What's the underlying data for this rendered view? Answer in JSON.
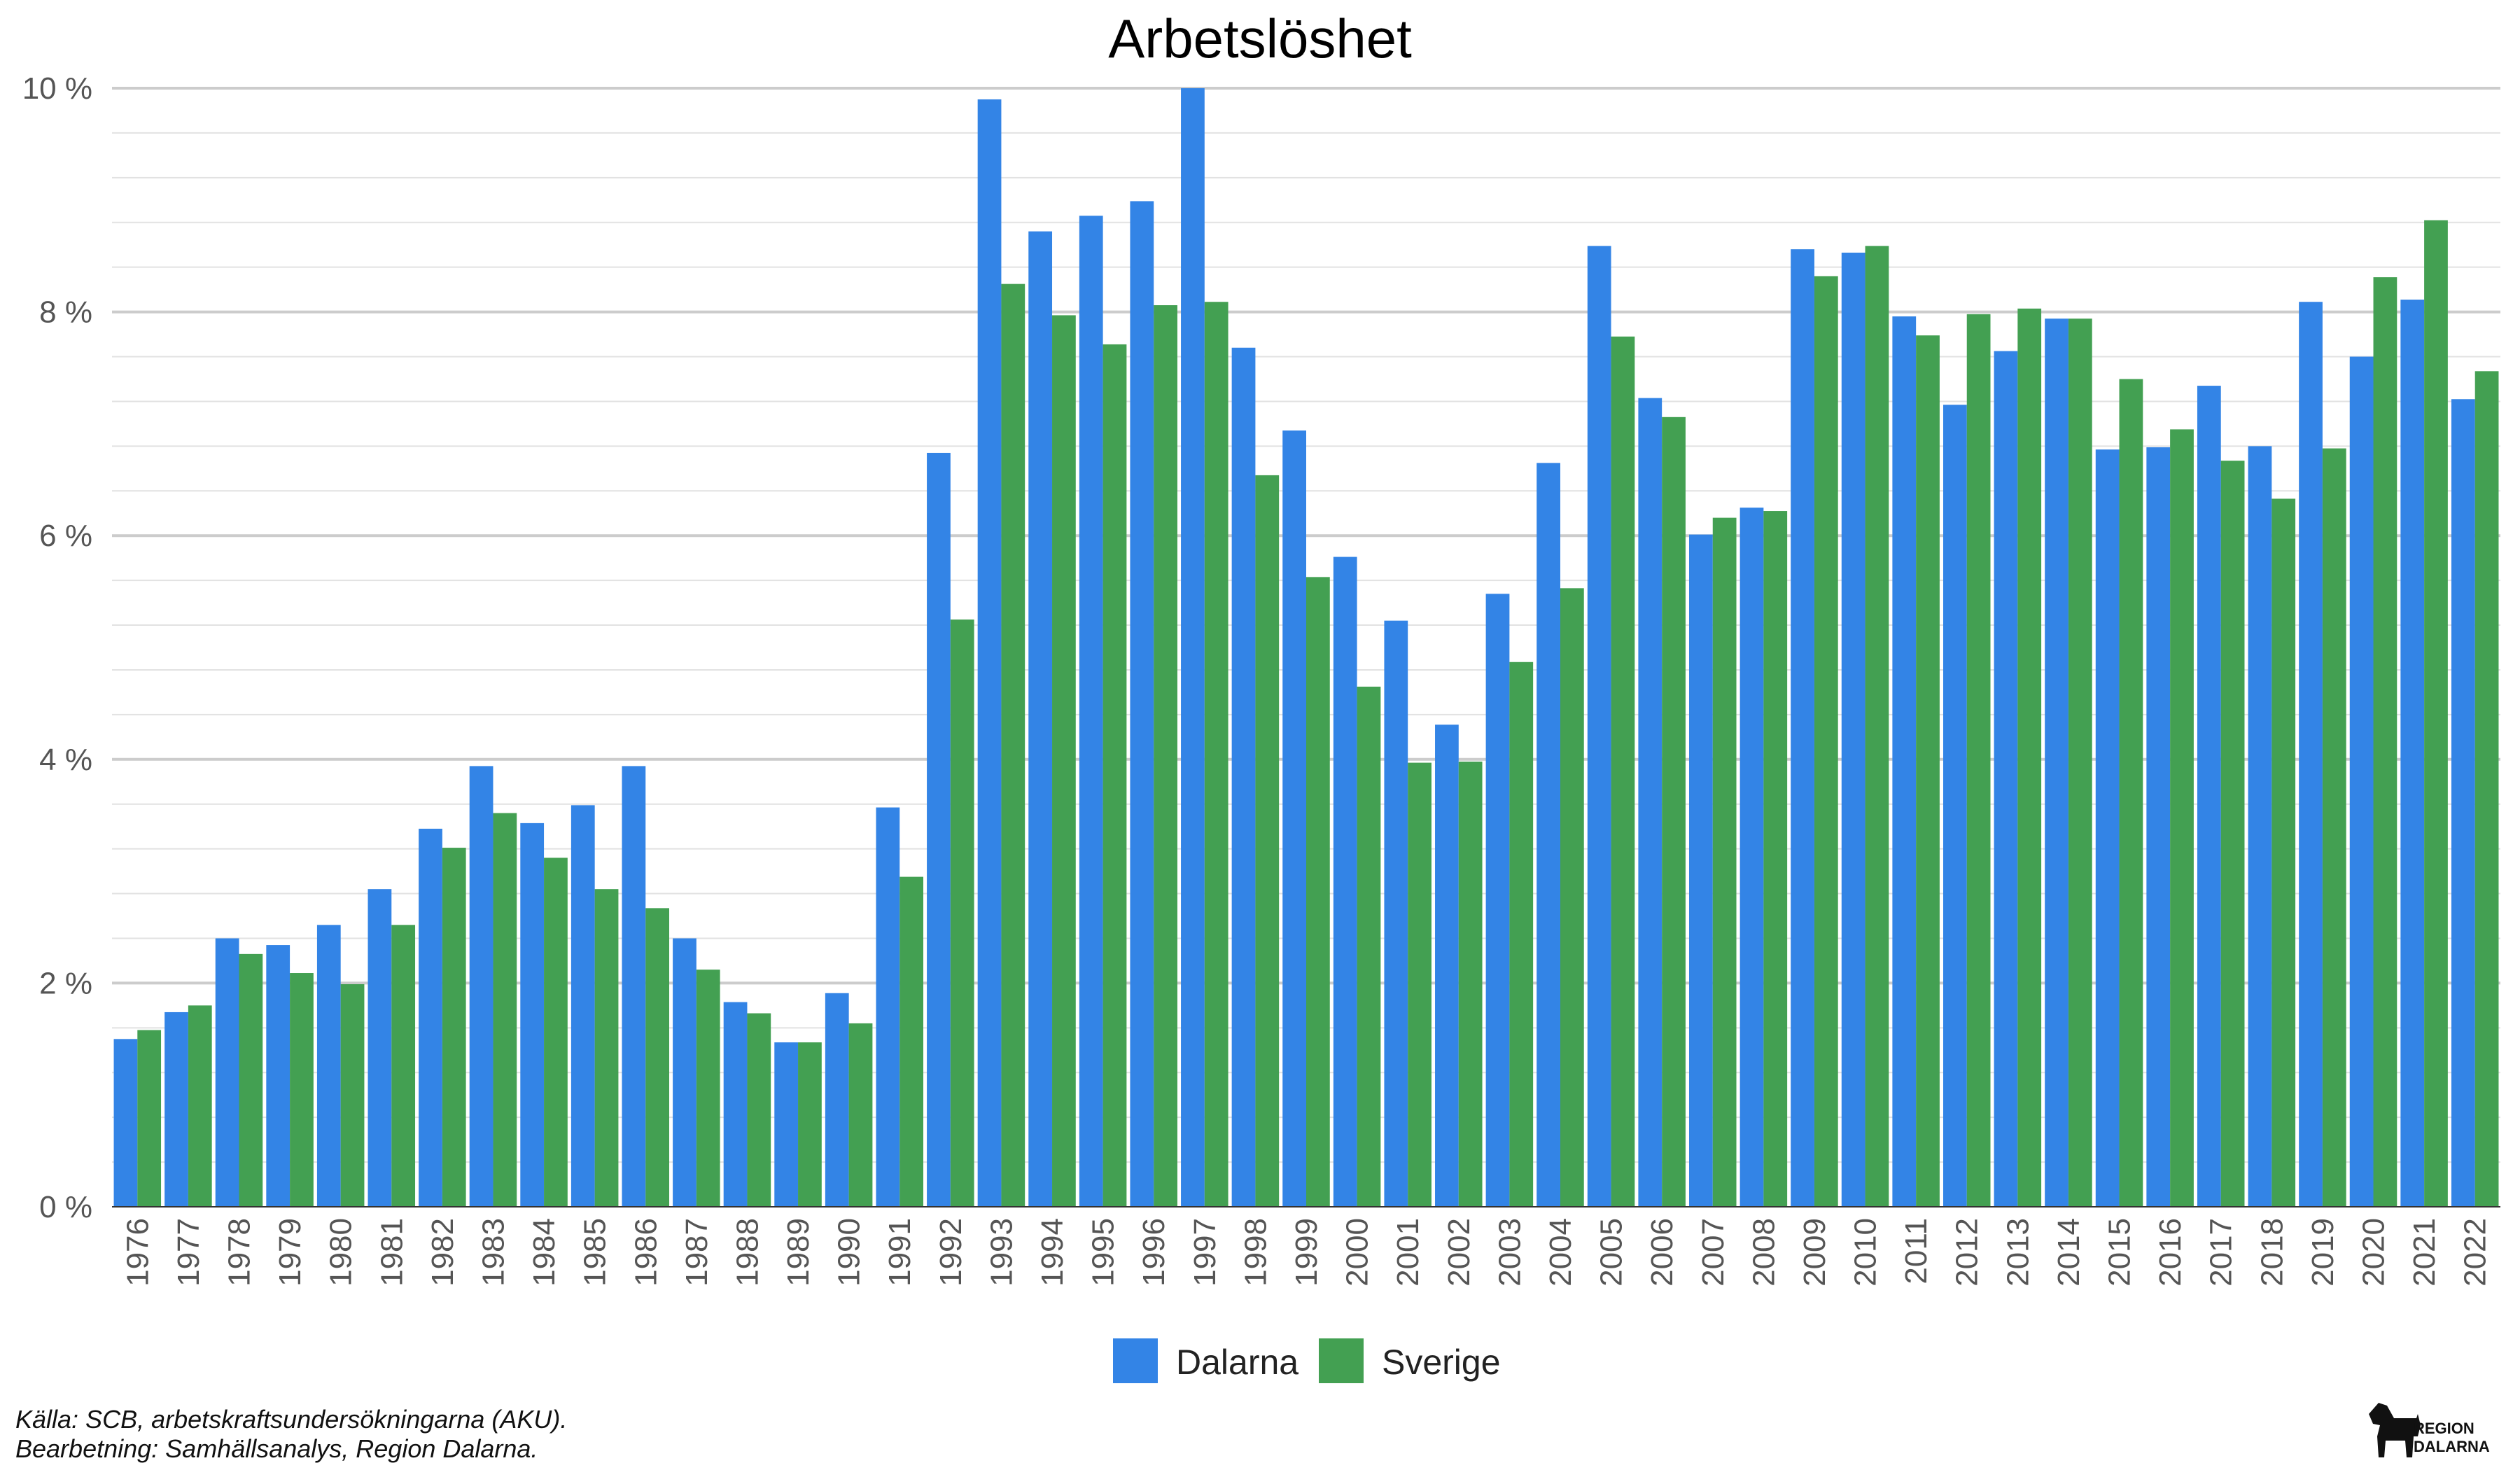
{
  "chart_data": {
    "type": "bar",
    "title": "Arbetslöshet",
    "categories": [
      "1976",
      "1977",
      "1978",
      "1979",
      "1980",
      "1981",
      "1982",
      "1983",
      "1984",
      "1985",
      "1986",
      "1987",
      "1988",
      "1989",
      "1990",
      "1991",
      "1992",
      "1993",
      "1994",
      "1995",
      "1996",
      "1997",
      "1998",
      "1999",
      "2000",
      "2001",
      "2002",
      "2003",
      "2004",
      "2005",
      "2006",
      "2007",
      "2008",
      "2009",
      "2010",
      "2011",
      "2012",
      "2013",
      "2014",
      "2015",
      "2016",
      "2017",
      "2018",
      "2019",
      "2020",
      "2021",
      "2022"
    ],
    "series": [
      {
        "name": "Dalarna",
        "color": "#3384E6",
        "values": [
          1.5,
          1.74,
          2.4,
          2.34,
          2.52,
          2.84,
          3.38,
          3.94,
          3.43,
          3.59,
          3.94,
          2.4,
          1.83,
          1.47,
          1.91,
          3.57,
          6.74,
          9.9,
          8.72,
          8.86,
          8.99,
          10.0,
          7.68,
          6.94,
          5.81,
          5.24,
          4.31,
          5.48,
          6.65,
          8.59,
          7.23,
          6.01,
          6.25,
          8.56,
          8.53,
          7.96,
          7.17,
          7.65,
          7.94,
          6.77,
          6.79,
          7.34,
          6.8,
          8.09,
          7.6,
          8.11,
          7.22
        ]
      },
      {
        "name": "Sverige",
        "color": "#43A052",
        "values": [
          1.58,
          1.8,
          2.26,
          2.09,
          1.99,
          2.52,
          3.21,
          3.52,
          3.12,
          2.84,
          2.67,
          2.12,
          1.73,
          1.47,
          1.64,
          2.95,
          5.25,
          8.25,
          7.97,
          7.71,
          8.06,
          8.09,
          6.54,
          5.63,
          4.65,
          3.97,
          3.98,
          4.87,
          5.53,
          7.78,
          7.06,
          6.16,
          6.22,
          8.32,
          8.59,
          7.79,
          7.98,
          8.03,
          7.94,
          7.4,
          6.95,
          6.67,
          6.33,
          6.78,
          8.31,
          8.82,
          7.47
        ]
      }
    ],
    "ylim": [
      0,
      10
    ],
    "yticks": [
      "0 %",
      "2 %",
      "4 %",
      "6 %",
      "8 %",
      "10 %"
    ],
    "grid": true,
    "legend_position": "bottom"
  },
  "footnote": {
    "line1": "Källa: SCB, arbetskraftsundersökningarna (AKU).",
    "line2": "Bearbetning: Samhällsanalys, Region Dalarna."
  },
  "logo": {
    "line1": "REGION",
    "line2": "DALARNA",
    "icon": "dala-horse-icon"
  }
}
